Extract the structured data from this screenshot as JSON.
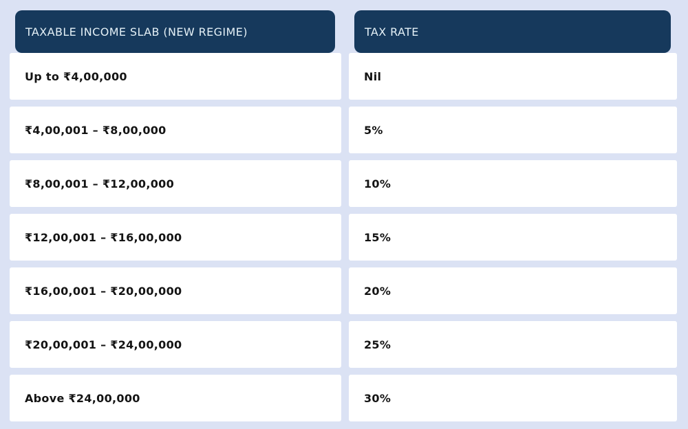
{
  "page": {
    "background_color": "#dbe2f4"
  },
  "table": {
    "header_bg": "#16395c",
    "header_text_color": "#e4f0f6",
    "cell_bg": "#ffffff",
    "cell_text_color": "#141414",
    "columns": [
      {
        "label": "TAXABLE INCOME SLAB (NEW REGIME)"
      },
      {
        "label": "TAX RATE"
      }
    ],
    "rows": [
      {
        "slab": "Up to ₹4,00,000",
        "rate": "Nil"
      },
      {
        "slab": "₹4,00,001 – ₹8,00,000",
        "rate": "5%"
      },
      {
        "slab": "₹8,00,001 – ₹12,00,000",
        "rate": "10%"
      },
      {
        "slab": "₹12,00,001 – ₹16,00,000",
        "rate": "15%"
      },
      {
        "slab": "₹16,00,001 – ₹20,00,000",
        "rate": "20%"
      },
      {
        "slab": "₹20,00,001 – ₹24,00,000",
        "rate": "25%"
      },
      {
        "slab": "Above ₹24,00,000",
        "rate": "30%"
      }
    ]
  },
  "chart_data": {
    "type": "table",
    "title": "",
    "columns": [
      "TAXABLE INCOME SLAB (NEW REGIME)",
      "TAX RATE"
    ],
    "rows": [
      [
        "Up to ₹4,00,000",
        "Nil"
      ],
      [
        "₹4,00,001 – ₹8,00,000",
        "5%"
      ],
      [
        "₹8,00,001 – ₹12,00,000",
        "10%"
      ],
      [
        "₹12,00,001 – ₹16,00,000",
        "15%"
      ],
      [
        "₹16,00,001 – ₹20,00,000",
        "20%"
      ],
      [
        "₹20,00,001 – ₹24,00,000",
        "25%"
      ],
      [
        "Above ₹24,00,000",
        "30%"
      ]
    ],
    "tax_rates_numeric_percent": [
      0,
      5,
      10,
      15,
      20,
      25,
      30
    ]
  }
}
